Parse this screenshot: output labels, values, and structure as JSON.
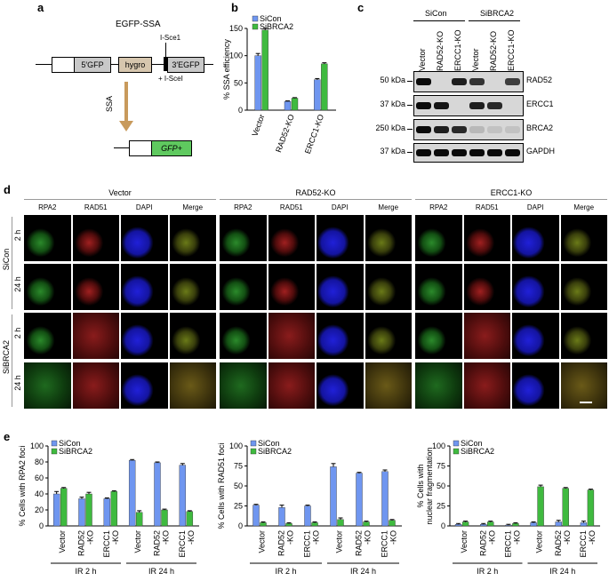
{
  "panels": {
    "a": "a",
    "b": "b",
    "c": "c",
    "d": "d",
    "e": "e"
  },
  "panel_a": {
    "title": "EGFP-SSA",
    "seg_5gfp": "5′GFP",
    "seg_hygro": "hygro",
    "seg_3egfp": "3′EGFP",
    "site": "I-Sce1",
    "plus_enzyme": "+ I-SceI",
    "arrow_label": "SSA",
    "product": "GFP+"
  },
  "panel_b": {
    "chart_data": {
      "type": "bar",
      "categories": [
        "Vector",
        "RAD52-KO",
        "ERCC1-KO"
      ],
      "series": [
        {
          "name": "SiCon",
          "values": [
            100,
            16,
            56
          ],
          "err": [
            4,
            1,
            2
          ]
        },
        {
          "name": "SiBRCA2",
          "values": [
            147,
            22,
            85
          ],
          "err": [
            3,
            1,
            2
          ]
        }
      ],
      "ylabel": "% SSA efficiency",
      "ylim": [
        0,
        150
      ],
      "yticks": [
        "0",
        "50",
        "100",
        "150"
      ],
      "colors": {
        "SiCon": "#6f96f0",
        "SiBRCA2": "#3fba3f"
      }
    }
  },
  "panel_c": {
    "groups": [
      "SiCon",
      "SiBRCA2"
    ],
    "lanes": [
      "Vector",
      "RAD52-KO",
      "ERCC1-KO",
      "Vector",
      "RAD52-KO",
      "ERCC1-KO"
    ],
    "rows": [
      {
        "kda": "50 kDa",
        "protein": "RAD52",
        "lanes": [
          1,
          0,
          0.9,
          0.8,
          0,
          0.75
        ]
      },
      {
        "kda": "37 kDa",
        "protein": "ERCC1",
        "lanes": [
          1,
          0.95,
          0,
          0.9,
          0.85,
          0
        ]
      },
      {
        "kda": "250 kDa",
        "protein": "BRCA2",
        "lanes": [
          1,
          0.9,
          0.85,
          0.15,
          0.1,
          0.1
        ]
      },
      {
        "kda": "37 kDa",
        "protein": "GAPDH",
        "lanes": [
          1,
          1,
          1,
          1,
          1,
          1
        ]
      }
    ]
  },
  "panel_d": {
    "groups": [
      "Vector",
      "RAD52-KO",
      "ERCC1-KO"
    ],
    "channels": [
      "RPA2",
      "RAD51",
      "DAPI",
      "Merge"
    ],
    "conditions": [
      "SiCon",
      "SiBRCA2"
    ],
    "times": [
      "2 h",
      "24 h",
      "2 h",
      "24 h"
    ]
  },
  "panel_e": {
    "chart_data": [
      {
        "type": "bar",
        "ylabel": "% Cells with RPA2 foci",
        "ylim": [
          0,
          100
        ],
        "yticks": [
          "0",
          "20",
          "40",
          "60",
          "80",
          "100"
        ],
        "categories": [
          "Vector",
          "RAD52\n-KO",
          "ERCC1\n-KO",
          "Vector",
          "RAD52\n-KO",
          "ERCC1\n-KO"
        ],
        "group_labels": [
          "IR 2 h",
          "IR 24 h"
        ],
        "series": [
          {
            "name": "SiCon",
            "values": [
              40,
              34,
              34,
              82,
              79,
              76
            ],
            "err": [
              3,
              2,
              1,
              1,
              1,
              2
            ]
          },
          {
            "name": "SiBRCA2",
            "values": [
              47,
              40,
              43,
              17,
              20,
              18
            ],
            "err": [
              1,
              2,
              1,
              2,
              1,
              1
            ]
          }
        ]
      },
      {
        "type": "bar",
        "ylabel": "% Cells with RAD51 foci",
        "ylim": [
          0,
          100
        ],
        "yticks": [
          "0",
          "25",
          "50",
          "75",
          "100"
        ],
        "categories": [
          "Vector",
          "RAD52\n-KO",
          "ERCC1\n-KO",
          "Vector",
          "RAD52\n-KO",
          "ERCC1\n-KO"
        ],
        "group_labels": [
          "IR 2 h",
          "IR 24 h"
        ],
        "series": [
          {
            "name": "SiCon",
            "values": [
              26,
              23,
              25,
              74,
              66,
              68
            ],
            "err": [
              1,
              3,
              1,
              4,
              1,
              2
            ]
          },
          {
            "name": "SiBRCA2",
            "values": [
              4,
              3,
              4,
              8,
              5,
              7
            ],
            "err": [
              1,
              1,
              1,
              2,
              1,
              1
            ]
          }
        ]
      },
      {
        "type": "bar",
        "ylabel": "% Cells with nuclear fragmentation",
        "ylim": [
          0,
          100
        ],
        "yticks": [
          "0",
          "25",
          "50",
          "75",
          "100"
        ],
        "categories": [
          "Vector",
          "RAD52\n-KO",
          "ERCC1\n-KO",
          "Vector",
          "RAD52\n-KO",
          "ERCC1\n-KO"
        ],
        "group_labels": [
          "IR 2 h",
          "IR 24 h"
        ],
        "series": [
          {
            "name": "SiCon",
            "values": [
              2,
              2,
              1,
              4,
              5,
              4
            ],
            "err": [
              1,
              1,
              1,
              1,
              2,
              2
            ]
          },
          {
            "name": "SiBRCA2",
            "values": [
              5,
              5,
              3,
              49,
              47,
              45
            ],
            "err": [
              1,
              1,
              1,
              2,
              1,
              1
            ]
          }
        ]
      }
    ],
    "legend": [
      "SiCon",
      "SiBRCA2"
    ],
    "colors": {
      "SiCon": "#6f96f0",
      "SiBRCA2": "#3fba3f"
    }
  }
}
